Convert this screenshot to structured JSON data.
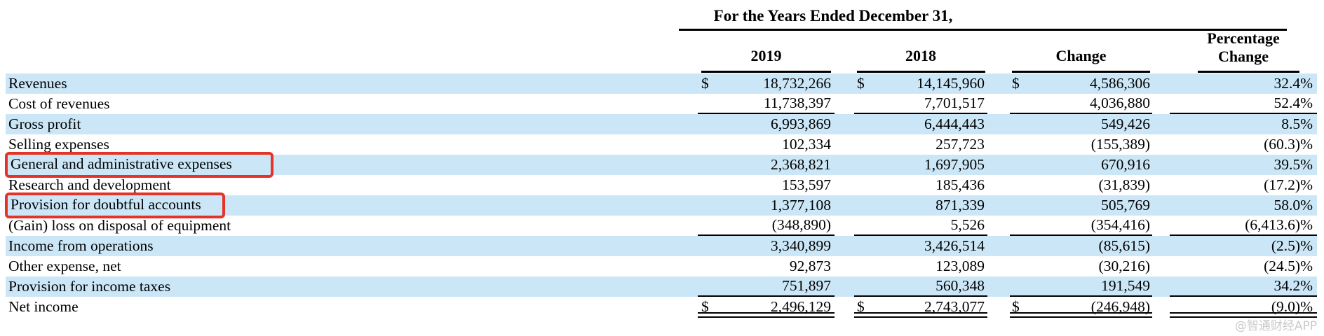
{
  "header": {
    "group_title": "For the Years Ended December 31,",
    "col_2019": "2019",
    "col_2018": "2018",
    "col_change": "Change",
    "col_pct_line1": "Percentage",
    "col_pct_line2": "Change"
  },
  "table": {
    "columns": [
      "",
      "2019",
      "2018",
      "Change",
      "Percentage Change"
    ],
    "rows": [
      {
        "label": "Revenues",
        "y2019": "18,732,266",
        "y2018": "14,145,960",
        "change": "4,586,306",
        "pct": "32.4%",
        "dollar": true,
        "shaded": true,
        "underline": "none",
        "boxed": false
      },
      {
        "label": "Cost of revenues",
        "y2019": "11,738,397",
        "y2018": "7,701,517",
        "change": "4,036,880",
        "pct": "52.4%",
        "dollar": false,
        "shaded": false,
        "underline": "single",
        "boxed": false
      },
      {
        "label": "Gross profit",
        "y2019": "6,993,869",
        "y2018": "6,444,443",
        "change": "549,426",
        "pct": "8.5%",
        "dollar": false,
        "shaded": true,
        "underline": "none",
        "boxed": false
      },
      {
        "label": "Selling expenses",
        "y2019": "102,334",
        "y2018": "257,723",
        "change": "(155,389)",
        "pct": "(60.3)%",
        "dollar": false,
        "shaded": false,
        "underline": "none",
        "boxed": false
      },
      {
        "label": "General and administrative expenses",
        "y2019": "2,368,821",
        "y2018": "1,697,905",
        "change": "670,916",
        "pct": "39.5%",
        "dollar": false,
        "shaded": true,
        "underline": "none",
        "boxed": true
      },
      {
        "label": "Research and development",
        "y2019": "153,597",
        "y2018": "185,436",
        "change": "(31,839)",
        "pct": "(17.2)%",
        "dollar": false,
        "shaded": false,
        "underline": "none",
        "boxed": false
      },
      {
        "label": "Provision for doubtful accounts",
        "y2019": "1,377,108",
        "y2018": "871,339",
        "change": "505,769",
        "pct": "58.0%",
        "dollar": false,
        "shaded": true,
        "underline": "none",
        "boxed": true
      },
      {
        "label": "(Gain) loss on disposal of equipment",
        "y2019": "(348,890)",
        "y2018": "5,526",
        "change": "(354,416)",
        "pct": "(6,413.6)%",
        "dollar": false,
        "shaded": false,
        "underline": "single",
        "boxed": false
      },
      {
        "label": "Income from operations",
        "y2019": "3,340,899",
        "y2018": "3,426,514",
        "change": "(85,615)",
        "pct": "(2.5)%",
        "dollar": false,
        "shaded": true,
        "underline": "none",
        "boxed": false
      },
      {
        "label": "Other expense, net",
        "y2019": "92,873",
        "y2018": "123,089",
        "change": "(30,216)",
        "pct": "(24.5)%",
        "dollar": false,
        "shaded": false,
        "underline": "none",
        "boxed": false
      },
      {
        "label": "Provision for income taxes",
        "y2019": "751,897",
        "y2018": "560,348",
        "change": "191,549",
        "pct": "34.2%",
        "dollar": false,
        "shaded": true,
        "underline": "single",
        "boxed": false
      },
      {
        "label": "Net income",
        "y2019": "2,496,129",
        "y2018": "2,743,077",
        "change": "(246,948)",
        "pct": "(9.0)%",
        "dollar": true,
        "shaded": false,
        "underline": "double",
        "boxed": false
      }
    ],
    "dollar_symbol": "$"
  },
  "annotations": {
    "boxed_labels": [
      "General and administrative expenses",
      "Provision for doubtful accounts"
    ],
    "box_color": "#e63328"
  },
  "colors": {
    "row_stripe": "#cbe7f7",
    "rule": "#000000",
    "watermark_gray": "#c9c9c9"
  },
  "watermark": "@智通财经APP"
}
